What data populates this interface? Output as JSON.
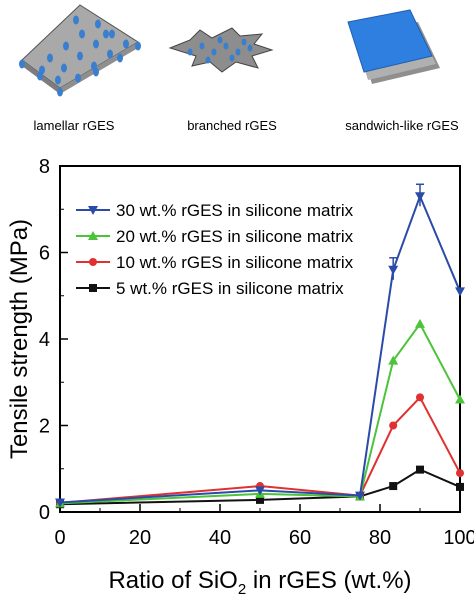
{
  "structures": [
    {
      "label": "lamellar rGES",
      "icon": "lamellar-sheet-icon"
    },
    {
      "label": "branched rGES",
      "icon": "branched-structure-icon"
    },
    {
      "label": "sandwich-like rGES",
      "icon": "sandwich-sheets-icon"
    }
  ],
  "colors": {
    "s30": "#2b4ba8",
    "s20": "#4cc43a",
    "s10": "#e03030",
    "s5": "#111111",
    "sheet_gray": "#a9a9a9",
    "dot_blue": "#3a7fcf",
    "sandwich_blue": "#2f7fe0"
  },
  "chart_data": {
    "type": "line",
    "xlabel_pre": "Ratio of SiO",
    "xlabel_sub": "2",
    "xlabel_post": " in rGES (wt.%)",
    "ylabel": "Tensile strength (MPa)",
    "xlim": [
      0,
      100
    ],
    "ylim": [
      0,
      8
    ],
    "xticks": [
      "0",
      "20",
      "40",
      "60",
      "80",
      "100"
    ],
    "yticks": [
      "0",
      "2",
      "4",
      "6",
      "8"
    ],
    "x": [
      0,
      50,
      75,
      83.3,
      90,
      100
    ],
    "legend_position": "top-left",
    "series": [
      {
        "name": "30 wt.% rGES in silicone matrix",
        "key": "s30",
        "marker": "triangle-down",
        "values": [
          0.22,
          0.5,
          0.38,
          5.6,
          7.3,
          5.1
        ]
      },
      {
        "name": "20 wt.% rGES in silicone matrix",
        "key": "s20",
        "marker": "triangle-up",
        "values": [
          0.2,
          0.42,
          0.36,
          3.5,
          4.35,
          2.6
        ]
      },
      {
        "name": "10 wt.% rGES in silicone matrix",
        "key": "s10",
        "marker": "circle",
        "values": [
          0.21,
          0.6,
          0.38,
          2.0,
          2.65,
          0.9
        ]
      },
      {
        "name": "5 wt.% rGES in silicone matrix",
        "key": "s5",
        "marker": "square",
        "values": [
          0.18,
          0.28,
          0.36,
          0.6,
          0.98,
          0.58
        ]
      }
    ]
  }
}
